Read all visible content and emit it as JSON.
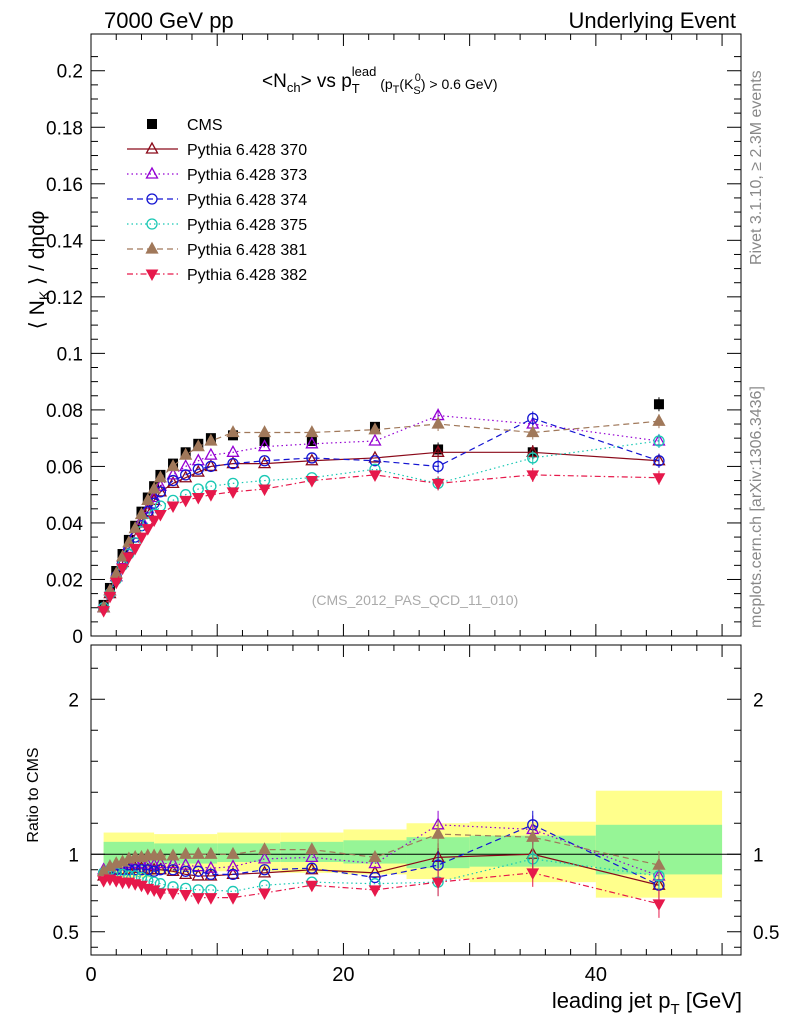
{
  "header": {
    "energy": "7000 GeV pp",
    "process": "Underlying Event"
  },
  "side": {
    "rivet": "Rivet 3.1.10, ≥ 2.3M events",
    "mcplots": "mcplots.cern.ch [arXiv:1306.3436]"
  },
  "plot_title": "<N_ch> vs p_T^lead (p_T(K_S^0) > 0.6 GeV)",
  "watermark": "(CMS_2012_PAS_QCD_11_010)",
  "ylabel_main": "⟨ N_K ⟩ / dηdφ",
  "ylabel_ratio": "Ratio to CMS",
  "xlabel": "leading jet p_T [GeV]",
  "chart_data": [
    {
      "type": "scatter",
      "panel": "main",
      "xlim": [
        0,
        51.5
      ],
      "ylim": [
        0,
        0.213
      ],
      "x_ticks": [
        0,
        20,
        40
      ],
      "y_ticks": [
        0,
        0.02,
        0.04,
        0.06,
        0.08,
        0.1,
        0.12,
        0.14,
        0.16,
        0.18,
        0.2
      ],
      "y_tick_labels": [
        "0",
        "0.02",
        "0.04",
        "0.06",
        "0.08",
        "0.1",
        "0.12",
        "0.14",
        "0.16",
        "0.18",
        "0.2"
      ],
      "legend_position": "top-left",
      "x": [
        1.0,
        1.5,
        2.0,
        2.5,
        3.0,
        3.5,
        4.0,
        4.5,
        5.0,
        5.5,
        6.5,
        7.5,
        8.5,
        9.5,
        11.25,
        13.75,
        17.5,
        22.5,
        27.5,
        35.0,
        45.0
      ],
      "series": [
        {
          "name": "CMS",
          "color": "#000000",
          "marker": "square-filled",
          "line": "none",
          "values": [
            0.011,
            0.017,
            0.023,
            0.029,
            0.034,
            0.039,
            0.044,
            0.049,
            0.053,
            0.057,
            0.061,
            0.065,
            0.068,
            0.07,
            0.071,
            0.069,
            0.069,
            0.074,
            0.066,
            0.065,
            0.082
          ]
        },
        {
          "name": "Pythia 6.428 370",
          "color": "#8b0a1a",
          "marker": "triangle-up-open",
          "line": "solid",
          "values": [
            0.01,
            0.015,
            0.021,
            0.026,
            0.031,
            0.036,
            0.04,
            0.044,
            0.048,
            0.051,
            0.054,
            0.056,
            0.058,
            0.06,
            0.061,
            0.061,
            0.062,
            0.063,
            0.065,
            0.065,
            0.062
          ]
        },
        {
          "name": "Pythia 6.428 373",
          "color": "#9400d3",
          "marker": "triangle-up-open",
          "line": "dotted",
          "values": [
            0.01,
            0.016,
            0.021,
            0.027,
            0.032,
            0.036,
            0.041,
            0.045,
            0.049,
            0.053,
            0.057,
            0.06,
            0.062,
            0.064,
            0.065,
            0.067,
            0.068,
            0.069,
            0.078,
            0.075,
            0.069
          ]
        },
        {
          "name": "Pythia 6.428 374",
          "color": "#1414d2",
          "marker": "circle-open",
          "line": "dashed",
          "values": [
            0.01,
            0.015,
            0.021,
            0.026,
            0.031,
            0.035,
            0.039,
            0.044,
            0.047,
            0.051,
            0.055,
            0.057,
            0.059,
            0.06,
            0.061,
            0.062,
            0.063,
            0.062,
            0.06,
            0.077,
            0.062
          ]
        },
        {
          "name": "Pythia 6.428 375",
          "color": "#19c8b4",
          "marker": "circle-open",
          "line": "dotted",
          "values": [
            0.01,
            0.015,
            0.02,
            0.025,
            0.029,
            0.033,
            0.037,
            0.04,
            0.043,
            0.046,
            0.048,
            0.05,
            0.052,
            0.053,
            0.054,
            0.055,
            0.056,
            0.059,
            0.054,
            0.063,
            0.069
          ]
        },
        {
          "name": "Pythia 6.428 381",
          "color": "#a0785a",
          "marker": "triangle-up-filled",
          "line": "dashed",
          "values": [
            0.01,
            0.016,
            0.022,
            0.028,
            0.033,
            0.038,
            0.043,
            0.048,
            0.052,
            0.056,
            0.06,
            0.064,
            0.067,
            0.069,
            0.072,
            0.072,
            0.072,
            0.073,
            0.075,
            0.072,
            0.076
          ]
        },
        {
          "name": "Pythia 6.428 382",
          "color": "#e6194b",
          "marker": "triangle-down-filled",
          "line": "dashdot",
          "values": [
            0.009,
            0.014,
            0.019,
            0.024,
            0.028,
            0.031,
            0.035,
            0.038,
            0.041,
            0.043,
            0.046,
            0.048,
            0.049,
            0.05,
            0.051,
            0.052,
            0.055,
            0.057,
            0.054,
            0.057,
            0.056
          ]
        }
      ]
    },
    {
      "type": "scatter",
      "panel": "ratio",
      "xlim": [
        0,
        51.5
      ],
      "ylim": [
        0.35,
        2.35
      ],
      "y_ticks": [
        0.5,
        1,
        2
      ],
      "y_tick_labels": [
        "0.5",
        "1",
        "2"
      ],
      "x": [
        1.0,
        1.5,
        2.0,
        2.5,
        3.0,
        3.5,
        4.0,
        4.5,
        5.0,
        5.5,
        6.5,
        7.5,
        8.5,
        9.5,
        11.25,
        13.75,
        17.5,
        22.5,
        27.5,
        35.0,
        45.0
      ],
      "bands": {
        "edges": [
          1,
          5,
          10,
          15,
          20,
          25,
          30,
          40,
          50
        ],
        "green_low": [
          0.92,
          0.94,
          0.95,
          0.95,
          0.94,
          0.91,
          0.92,
          0.87
        ],
        "green_high": [
          1.08,
          1.07,
          1.07,
          1.08,
          1.09,
          1.11,
          1.12,
          1.19
        ],
        "yellow_low": [
          0.85,
          0.88,
          0.89,
          0.88,
          0.87,
          0.84,
          0.82,
          0.72
        ],
        "yellow_high": [
          1.14,
          1.13,
          1.14,
          1.14,
          1.16,
          1.2,
          1.21,
          1.41
        ]
      },
      "series": [
        {
          "name": "Pythia 6.428 370",
          "values": [
            0.86,
            0.88,
            0.9,
            0.9,
            0.9,
            0.91,
            0.91,
            0.9,
            0.9,
            0.9,
            0.89,
            0.87,
            0.86,
            0.86,
            0.87,
            0.88,
            0.9,
            0.88,
            0.98,
            1.0,
            0.8
          ]
        },
        {
          "name": "Pythia 6.428 373",
          "values": [
            0.9,
            0.92,
            0.93,
            0.93,
            0.94,
            0.94,
            0.94,
            0.93,
            0.93,
            0.94,
            0.94,
            0.93,
            0.92,
            0.91,
            0.92,
            0.97,
            0.98,
            0.94,
            1.19,
            1.16,
            0.86
          ]
        },
        {
          "name": "Pythia 6.428 374",
          "values": [
            0.88,
            0.89,
            0.9,
            0.9,
            0.9,
            0.9,
            0.9,
            0.9,
            0.89,
            0.9,
            0.9,
            0.89,
            0.89,
            0.87,
            0.87,
            0.9,
            0.91,
            0.85,
            0.93,
            1.19,
            0.8
          ]
        },
        {
          "name": "Pythia 6.428 375",
          "values": [
            0.88,
            0.9,
            0.88,
            0.87,
            0.86,
            0.86,
            0.85,
            0.83,
            0.82,
            0.81,
            0.79,
            0.78,
            0.77,
            0.77,
            0.76,
            0.8,
            0.82,
            0.81,
            0.82,
            0.97,
            0.86
          ]
        },
        {
          "name": "Pythia 6.428 381",
          "values": [
            0.89,
            0.92,
            0.94,
            0.95,
            0.97,
            0.98,
            0.98,
            0.99,
            0.99,
            0.99,
            0.99,
            1.0,
            1.0,
            1.0,
            1.0,
            1.03,
            1.03,
            0.98,
            1.13,
            1.11,
            0.93
          ]
        },
        {
          "name": "Pythia 6.428 382",
          "values": [
            0.83,
            0.84,
            0.83,
            0.82,
            0.82,
            0.81,
            0.8,
            0.78,
            0.77,
            0.75,
            0.75,
            0.74,
            0.72,
            0.72,
            0.72,
            0.75,
            0.8,
            0.77,
            0.82,
            0.88,
            0.68
          ]
        }
      ]
    }
  ]
}
